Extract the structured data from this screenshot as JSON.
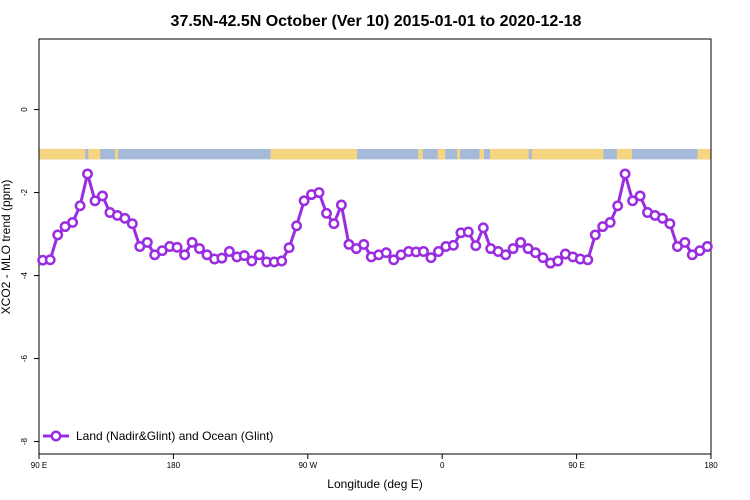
{
  "chart_data": {
    "type": "line",
    "title": "37.5N-42.5N October (Ver 10)   2015-01-01 to 2020-12-18",
    "xlabel": "Longitude (deg E)",
    "ylabel": "XCO2 - MLO trend (ppm)",
    "xlim": [
      90,
      540
    ],
    "ylim": [
      -8.3,
      1.7
    ],
    "x_ticks": [
      {
        "value": 90,
        "label": "90 E"
      },
      {
        "value": 180,
        "label": "180"
      },
      {
        "value": 270,
        "label": "90 W"
      },
      {
        "value": 360,
        "label": "0"
      },
      {
        "value": 450,
        "label": "90 E"
      },
      {
        "value": 540,
        "label": "180"
      }
    ],
    "y_ticks": [
      {
        "value": 0,
        "label": "0"
      },
      {
        "value": -2,
        "label": "-2"
      },
      {
        "value": -4,
        "label": "-4"
      },
      {
        "value": -6,
        "label": "-6"
      },
      {
        "value": -8,
        "label": "-8"
      }
    ],
    "series": [
      {
        "name": "Land (Nadir&Glint) and Ocean (Glint)",
        "color": "#9b2de0",
        "x": [
          92.5,
          97.5,
          102.5,
          107.5,
          112.5,
          117.5,
          122.5,
          127.5,
          132.5,
          137.5,
          142.5,
          147.5,
          152.5,
          157.5,
          162.5,
          167.5,
          172.5,
          177.5,
          182.5,
          187.5,
          192.5,
          197.5,
          202.5,
          207.5,
          212.5,
          217.5,
          222.5,
          227.5,
          232.5,
          237.5,
          242.5,
          247.5,
          252.5,
          257.5,
          262.5,
          267.5,
          272.5,
          277.5,
          282.5,
          287.5,
          292.5,
          297.5,
          302.5,
          307.5,
          312.5,
          317.5,
          322.5,
          327.5,
          332.5,
          337.5,
          342.5,
          347.5,
          352.5,
          357.5,
          362.5,
          367.5,
          372.5,
          377.5,
          382.5,
          387.5,
          392.5,
          397.5,
          402.5,
          407.5,
          412.5,
          417.5,
          422.5,
          427.5,
          432.5,
          437.5,
          442.5,
          447.5,
          452.5,
          457.5,
          462.5,
          467.5,
          472.5,
          477.5,
          482.5,
          487.5,
          492.5,
          497.5,
          502.5,
          507.5,
          512.5,
          517.5,
          522.5,
          527.5,
          532.5,
          537.5
        ],
        "y": [
          -3.63,
          -3.62,
          -3.02,
          -2.82,
          -2.72,
          -2.32,
          -1.55,
          -2.2,
          -2.08,
          -2.48,
          -2.55,
          -2.62,
          -2.75,
          -3.3,
          -3.2,
          -3.5,
          -3.4,
          -3.3,
          -3.32,
          -3.5,
          -3.2,
          -3.35,
          -3.5,
          -3.6,
          -3.58,
          -3.42,
          -3.55,
          -3.52,
          -3.65,
          -3.5,
          -3.67,
          -3.67,
          -3.65,
          -3.33,
          -2.8,
          -2.2,
          -2.05,
          -2.0,
          -2.5,
          -2.75,
          -2.3,
          -3.25,
          -3.35,
          -3.25,
          -3.55,
          -3.5,
          -3.45,
          -3.62,
          -3.5,
          -3.42,
          -3.43,
          -3.42,
          -3.57,
          -3.42,
          -3.3,
          -3.27,
          -2.97,
          -2.95,
          -3.28,
          -2.85,
          -3.35,
          -3.42,
          -3.5,
          -3.35,
          -3.2,
          -3.35,
          -3.45,
          -3.57,
          -3.7,
          -3.65,
          -3.48,
          -3.55,
          -3.6,
          -3.62,
          -3.02,
          -2.82,
          -2.72,
          -2.32,
          -1.55,
          -2.2,
          -2.08,
          -2.48,
          -2.55,
          -2.62,
          -2.75,
          -3.3,
          -3.2,
          -3.5,
          -3.4,
          -3.3
        ]
      }
    ],
    "surface_band": {
      "y_top": -0.95,
      "y_bottom": -1.2,
      "land_color": "#f5d580",
      "ocean_color": "#a5bad8",
      "land_ranges": [
        [
          90,
          121
        ],
        [
          123,
          131
        ],
        [
          141,
          143
        ],
        [
          245,
          303
        ],
        [
          344,
          347
        ],
        [
          357,
          362
        ],
        [
          370,
          372
        ],
        [
          385,
          388
        ],
        [
          392,
          418
        ],
        [
          420,
          468
        ],
        [
          477,
          487
        ],
        [
          531,
          540
        ]
      ]
    },
    "legend": {
      "position": "bottom-left"
    },
    "grid": false
  }
}
